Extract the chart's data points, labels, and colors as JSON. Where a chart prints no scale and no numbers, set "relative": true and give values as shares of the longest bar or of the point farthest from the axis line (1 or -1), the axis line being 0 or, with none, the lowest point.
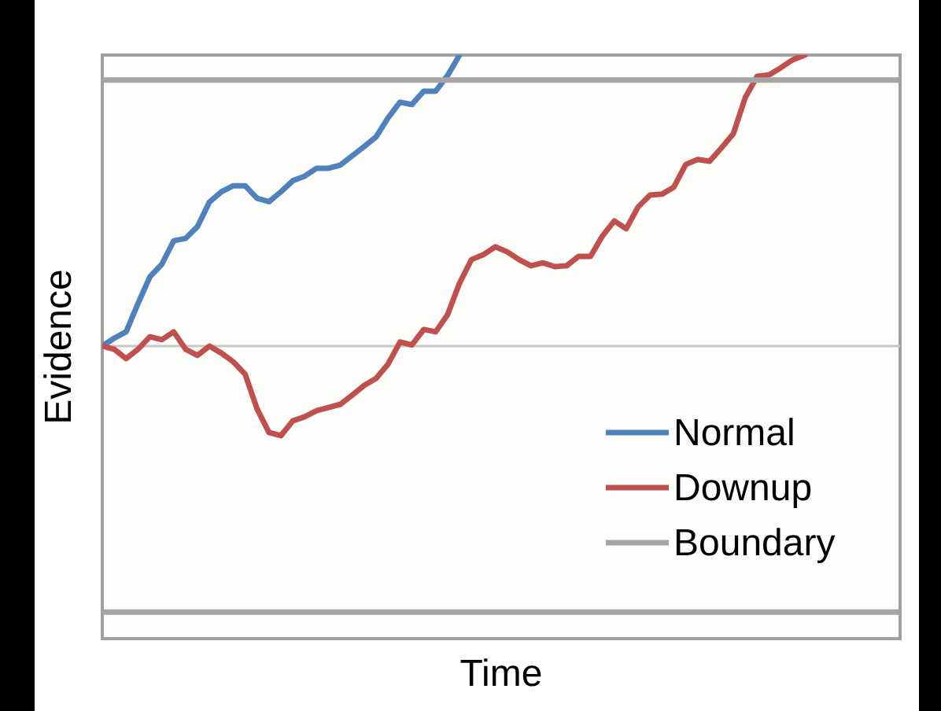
{
  "chart_data": {
    "type": "line",
    "relative": true,
    "xlabel": "Time",
    "ylabel": "Evidence",
    "legend": "bottom right",
    "marker": "none",
    "line_style": "solid",
    "categories": [
      null,
      null,
      null,
      null,
      null,
      null,
      null,
      null,
      null,
      null,
      null,
      null,
      null,
      null,
      null,
      null,
      null,
      null,
      null,
      null,
      null,
      null,
      null,
      null,
      null,
      null,
      null,
      null,
      null,
      null,
      null,
      null,
      null,
      null,
      null,
      null,
      null,
      null,
      null,
      null,
      null,
      null,
      null,
      null,
      null,
      null,
      null,
      null,
      null,
      null,
      null,
      null,
      null,
      null,
      null,
      null,
      null,
      null,
      null,
      null,
      null,
      null,
      null,
      null,
      null,
      null,
      null,
      null
    ],
    "series": [
      {
        "name": "Normal",
        "color": "#4f81bd",
        "values": [
          0,
          0.027,
          0.049,
          0.146,
          0.238,
          0.281,
          0.362,
          0.37,
          0.411,
          0.495,
          0.53,
          0.551,
          0.551,
          0.508,
          0.496,
          0.53,
          0.568,
          0.584,
          0.611,
          0.611,
          0.622,
          0.654,
          0.686,
          0.719,
          0.784,
          0.838,
          0.83,
          0.876,
          0.876,
          0.93,
          1.0,
          null,
          null,
          null,
          null,
          null,
          null,
          null,
          null,
          null,
          null,
          null,
          null,
          null,
          null,
          null,
          null,
          null,
          null,
          null,
          null,
          null,
          null,
          null,
          null,
          null,
          null,
          null,
          null,
          null,
          null,
          null,
          null,
          null,
          null,
          null,
          null,
          null
        ]
      },
      {
        "name": "Downup",
        "color": "#c0504d",
        "values": [
          0,
          -0.011,
          -0.043,
          -0.011,
          0.032,
          0.022,
          0.049,
          -0.011,
          -0.032,
          0,
          -0.024,
          -0.054,
          -0.097,
          -0.216,
          -0.297,
          -0.308,
          -0.257,
          -0.243,
          -0.222,
          -0.211,
          -0.2,
          -0.168,
          -0.135,
          -0.111,
          -0.062,
          0.014,
          0.004,
          0.057,
          0.049,
          0.108,
          0.216,
          0.297,
          0.314,
          0.341,
          0.324,
          0.297,
          0.276,
          0.286,
          0.273,
          0.276,
          0.308,
          0.308,
          0.378,
          0.43,
          0.403,
          0.478,
          0.519,
          0.522,
          0.546,
          0.624,
          0.641,
          0.635,
          0.681,
          0.73,
          0.854,
          0.927,
          0.932,
          0.957,
          0.984,
          1.0,
          null,
          null,
          null,
          null,
          null,
          null,
          null,
          null
        ]
      },
      {
        "name": "Boundary",
        "color": "#a5a5a5",
        "values": [
          0.914,
          0.914,
          0.914,
          0.914,
          0.914,
          0.914,
          0.914,
          0.914,
          0.914,
          0.914,
          0.914,
          0.914,
          0.914,
          0.914,
          0.914,
          0.914,
          0.914,
          0.914,
          0.914,
          0.914,
          0.914,
          0.914,
          0.914,
          0.914,
          0.914,
          0.914,
          0.914,
          0.914,
          0.914,
          0.914,
          0.914,
          0.914,
          0.914,
          0.914,
          0.914,
          0.914,
          0.914,
          0.914,
          0.914,
          0.914,
          0.914,
          0.914,
          0.914,
          0.914,
          0.914,
          0.914,
          0.914,
          0.914,
          0.914,
          0.914,
          0.914,
          0.914,
          0.914,
          0.914,
          0.914,
          0.914,
          0.914,
          0.914,
          0.914,
          0.914,
          0.914,
          0.914,
          0.914,
          0.914,
          0.914,
          0.914,
          0.914,
          0.914
        ]
      },
      {
        "color": "#a5a5a5",
        "values": [
          -0.914,
          -0.914,
          -0.914,
          -0.914,
          -0.914,
          -0.914,
          -0.914,
          -0.914,
          -0.914,
          -0.914,
          -0.914,
          -0.914,
          -0.914,
          -0.914,
          -0.914,
          -0.914,
          -0.914,
          -0.914,
          -0.914,
          -0.914,
          -0.914,
          -0.914,
          -0.914,
          -0.914,
          -0.914,
          -0.914,
          -0.914,
          -0.914,
          -0.914,
          -0.914,
          -0.914,
          -0.914,
          -0.914,
          -0.914,
          -0.914,
          -0.914,
          -0.914,
          -0.914,
          -0.914,
          -0.914,
          -0.914,
          -0.914,
          -0.914,
          -0.914,
          -0.914,
          -0.914,
          -0.914,
          -0.914,
          -0.914,
          -0.914,
          -0.914,
          -0.914,
          -0.914,
          -0.914,
          -0.914,
          -0.914,
          -0.914,
          -0.914,
          -0.914,
          -0.914,
          -0.914,
          -0.914,
          -0.914,
          -0.914,
          -0.914,
          -0.914,
          -0.914,
          -0.914
        ]
      }
    ]
  }
}
